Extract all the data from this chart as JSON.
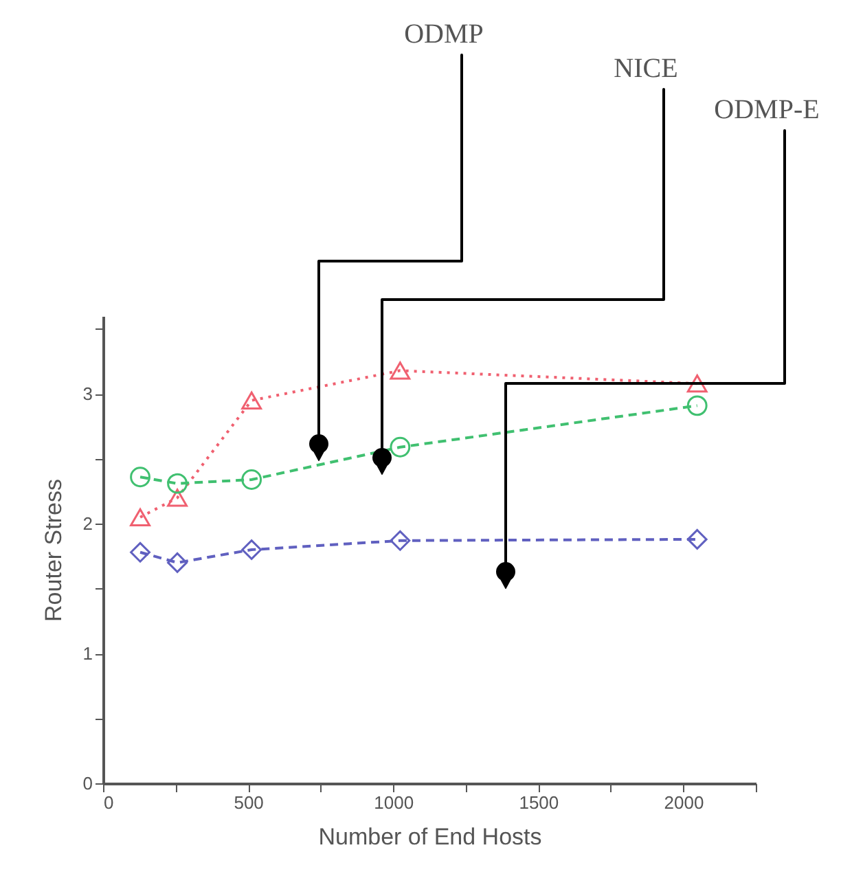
{
  "chart_data": {
    "type": "line",
    "x": [
      128,
      256,
      512,
      1024,
      2048
    ],
    "series": [
      {
        "color": "#f06070",
        "marker": "triangle",
        "line_style": "dotted",
        "values": [
          2.05,
          2.2,
          2.95,
          3.18,
          3.08
        ]
      },
      {
        "color": "#40c070",
        "marker": "circle",
        "line_style": "dashed",
        "values": [
          2.36,
          2.31,
          2.34,
          2.59,
          2.91
        ]
      },
      {
        "color": "#6060c0",
        "marker": "diamond",
        "line_style": "dashed",
        "values": [
          1.78,
          1.7,
          1.8,
          1.87,
          1.88
        ]
      }
    ],
    "xlabel": "Number of End Hosts",
    "ylabel": "Router Stress",
    "xlim": [
      0,
      2250
    ],
    "xticks": [
      0,
      {
        "value": 250,
        "label": null
      },
      500,
      {
        "value": 750,
        "label": null
      },
      1000,
      {
        "value": 1250,
        "label": null
      },
      1500,
      {
        "value": 1750,
        "label": null
      },
      2000,
      {
        "value": 2250,
        "label": null
      }
    ],
    "ylim": [
      0,
      3.6
    ],
    "yticks": [
      0,
      {
        "value": 0.5,
        "label": null
      },
      1,
      {
        "value": 1.5,
        "label": null
      },
      2,
      {
        "value": 2.5,
        "label": null
      },
      3,
      {
        "value": 3.5,
        "label": null
      }
    ],
    "grid": false,
    "annotations": [
      "ODMP",
      "NICE",
      "ODMP-E"
    ]
  }
}
